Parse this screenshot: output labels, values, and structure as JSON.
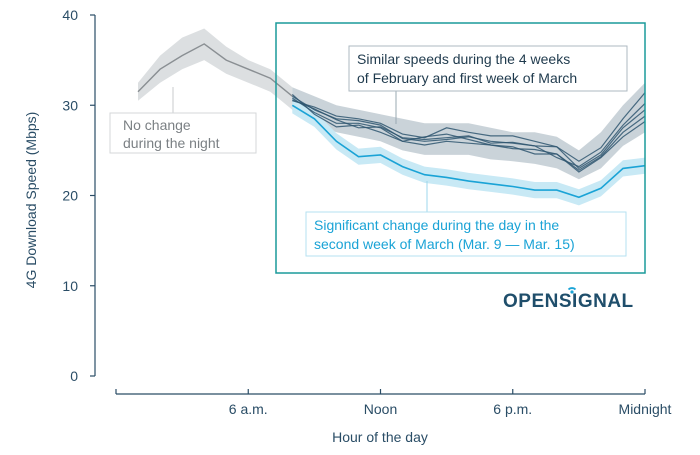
{
  "chart_data": {
    "type": "line",
    "xlabel": "Hour of the day",
    "ylabel": "4G Download Speed (Mbps)",
    "ylim": [
      0,
      40
    ],
    "xlim": [
      0,
      24
    ],
    "yticks": [
      "0",
      "10",
      "20",
      "30",
      "40"
    ],
    "xticks": [
      {
        "hour": 6,
        "label": "6 a.m."
      },
      {
        "hour": 12,
        "label": "Noon"
      },
      {
        "hour": 18,
        "label": "6 p.m."
      },
      {
        "hour": 24,
        "label": "Midnight"
      }
    ],
    "x": [
      1,
      2,
      3,
      4,
      5,
      6,
      7,
      8,
      9,
      10,
      11,
      12,
      13,
      14,
      15,
      16,
      17,
      18,
      19,
      20,
      21,
      22,
      23,
      24
    ],
    "night": {
      "x": [
        1,
        2,
        3,
        4,
        5,
        6,
        7,
        8
      ],
      "values": [
        31.5,
        34,
        35.5,
        36.8,
        35,
        34,
        33,
        31
      ]
    },
    "band_upper": [
      32.5,
      35.5,
      37.5,
      38.5,
      36.5,
      35,
      34,
      32,
      31,
      30,
      29.5,
      29,
      28.5,
      28,
      28,
      28,
      27.5,
      27,
      27,
      26.5,
      25,
      27,
      30,
      32.5
    ],
    "band_lower": [
      30.5,
      32.5,
      34,
      35,
      33.5,
      32.5,
      31.5,
      29.5,
      28,
      27,
      26.5,
      26,
      25,
      24.5,
      24.5,
      24.5,
      24,
      23.8,
      23.5,
      23,
      21.8,
      23,
      25.5,
      27
    ],
    "series": [
      {
        "values": [
          null,
          null,
          null,
          null,
          null,
          null,
          null,
          31,
          29.5,
          28.5,
          28.3,
          27.8,
          26.3,
          26.0,
          26.2,
          26.5,
          26.0,
          25.8,
          25.5,
          25.4,
          23.0,
          24.5,
          27.5,
          29.5
        ]
      },
      {
        "values": [
          null,
          null,
          null,
          null,
          null,
          null,
          null,
          30.8,
          29.2,
          28.0,
          28.0,
          27.5,
          26.0,
          26.5,
          26.8,
          26.2,
          25.6,
          25.4,
          24.6,
          24.6,
          22.8,
          24.3,
          27.0,
          28.8
        ]
      },
      {
        "values": [
          null,
          null,
          null,
          null,
          null,
          null,
          null,
          30.5,
          29.8,
          28.8,
          28.5,
          28.0,
          26.8,
          26.4,
          27.5,
          27.0,
          26.6,
          26.6,
          26.0,
          25.4,
          23.8,
          25.3,
          28.5,
          31.4
        ]
      },
      {
        "values": [
          null,
          null,
          null,
          null,
          null,
          null,
          null,
          31.2,
          29.0,
          27.6,
          27.8,
          27.0,
          26.0,
          25.6,
          26.0,
          25.8,
          25.6,
          25.2,
          25.1,
          24.6,
          22.6,
          24.2,
          26.5,
          28.2
        ]
      },
      {
        "values": [
          null,
          null,
          null,
          null,
          null,
          null,
          null,
          30.6,
          29.6,
          28.4,
          27.5,
          27.6,
          26.4,
          26.2,
          26.4,
          26.6,
          25.8,
          25.9,
          25.5,
          24.2,
          23.2,
          24.8,
          27.8,
          30.2
        ]
      },
      {
        "values": [
          null,
          null,
          null,
          null,
          null,
          null,
          null,
          30.0,
          28.5,
          26.0,
          24.3,
          24.5,
          23.2,
          22.3,
          22.0,
          21.6,
          21.3,
          21.0,
          20.6,
          20.6,
          19.8,
          20.8,
          23.0,
          23.3
        ]
      }
    ],
    "annotations": {
      "night": [
        "No change",
        "during the night"
      ],
      "feb": [
        "Similar speeds during the 4 weeks",
        "of February and first week of March"
      ],
      "march": [
        "Significant change during the day in the",
        "second week of March  (Mar. 9 — Mar. 15)"
      ]
    },
    "logo": "OPENSIGNAL",
    "colors": {
      "dark": "#2f5670",
      "band": "#b8c4cc",
      "night_line": "#8a8f93",
      "night_band": "#dcdfe1",
      "march_line": "#1aa3d6",
      "march_band": "#c8e9f5",
      "frame": "#1a9a9a",
      "axis": "#2a4d66"
    }
  }
}
